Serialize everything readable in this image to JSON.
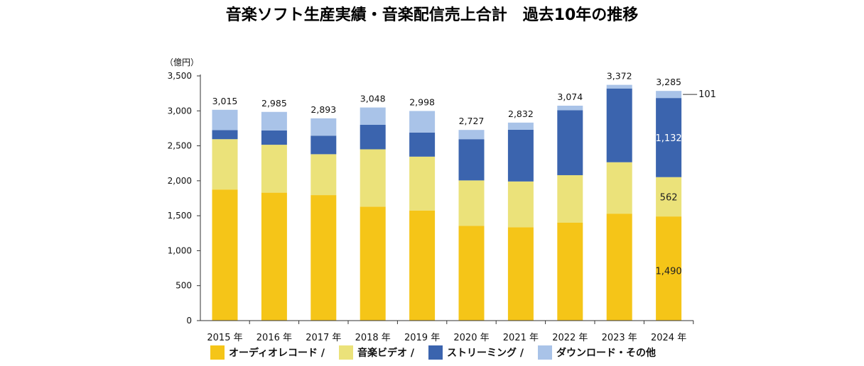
{
  "chart_data": {
    "type": "bar",
    "stacked": true,
    "title": "音楽ソフト生産実績・音楽配信売上合計　過去10年の推移",
    "ylabel": "（億円）",
    "xlabel": "",
    "ylim": [
      0,
      3500
    ],
    "yticks": [
      0,
      500,
      1000,
      1500,
      2000,
      2500,
      3000,
      3500
    ],
    "ytick_labels": [
      "0",
      "500",
      "1,000",
      "1,500",
      "2,000",
      "2,500",
      "3,000",
      "3,500"
    ],
    "categories": [
      "2015 年",
      "2016 年",
      "2017 年",
      "2018 年",
      "2019 年",
      "2020 年",
      "2021 年",
      "2022 年",
      "2023 年",
      "2024 年"
    ],
    "series": [
      {
        "name": "オーディオレコード /",
        "color": "#F5C518",
        "values": [
          1875,
          1830,
          1795,
          1630,
          1575,
          1355,
          1335,
          1400,
          1530,
          1490
        ]
      },
      {
        "name": "音楽ビデオ /",
        "color": "#EBE27A",
        "values": [
          720,
          685,
          585,
          820,
          770,
          650,
          655,
          680,
          735,
          562
        ]
      },
      {
        "name": "ストリーミング /",
        "color": "#3B64AE",
        "values": [
          130,
          205,
          265,
          350,
          345,
          590,
          740,
          928,
          1055,
          1132
        ]
      },
      {
        "name": "ダウンロード・その他",
        "color": "#A9C3E8",
        "values": [
          290,
          265,
          248,
          248,
          308,
          132,
          102,
          66,
          52,
          101
        ]
      }
    ],
    "totals": [
      3015,
      2985,
      2893,
      3048,
      2998,
      2727,
      2832,
      3074,
      3372,
      3285
    ],
    "total_labels": [
      "3,015",
      "2,985",
      "2,893",
      "3,048",
      "2,998",
      "2,727",
      "2,832",
      "3,074",
      "3,372",
      "3,285"
    ],
    "annotations": [
      {
        "category": "2024 年",
        "series": "オーディオレコード /",
        "text": "1,490"
      },
      {
        "category": "2024 年",
        "series": "音楽ビデオ /",
        "text": "562"
      },
      {
        "category": "2024 年",
        "series": "ストリーミング /",
        "text": "1,132"
      },
      {
        "category": "2024 年",
        "series": "ダウンロード・その他",
        "text": "101"
      }
    ],
    "legend_position": "bottom"
  },
  "legend_items": [
    "オーディオレコード /",
    "音楽ビデオ /",
    "ストリーミング /",
    "ダウンロード・その他"
  ],
  "colors": [
    "#F5C518",
    "#EBE27A",
    "#3B64AE",
    "#A9C3E8"
  ]
}
